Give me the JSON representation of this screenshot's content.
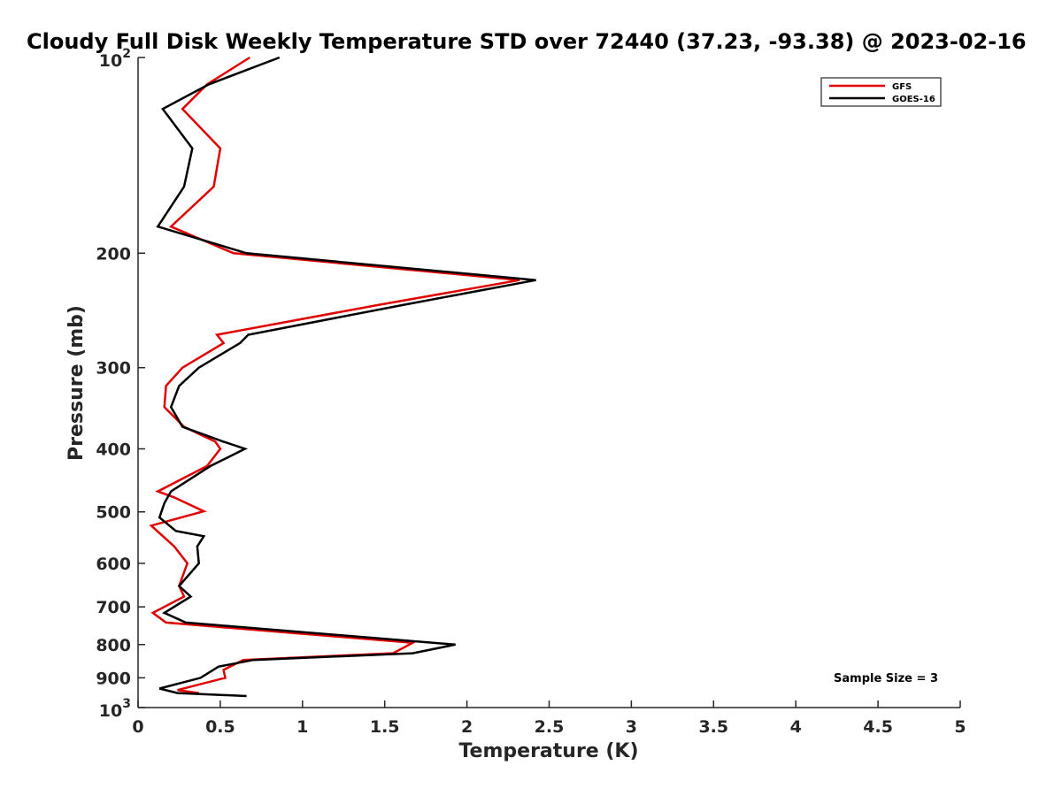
{
  "chart_data": {
    "type": "line",
    "title": "Cloudy Full Disk Weekly Temperature STD over 72440 (37.23, -93.38) @ 2023-02-16",
    "xlabel": "Temperature (K)",
    "ylabel": "Pressure (mb)",
    "xlim": [
      0,
      5
    ],
    "ylim": [
      100,
      1000
    ],
    "y_scale": "log",
    "y_reversed": true,
    "x_ticks": [
      0,
      0.5,
      1,
      1.5,
      2,
      2.5,
      3,
      3.5,
      4,
      4.5,
      5
    ],
    "x_tick_labels": [
      "0",
      "0.5",
      "1",
      "1.5",
      "2",
      "2.5",
      "3",
      "3.5",
      "4",
      "4.5",
      "5"
    ],
    "y_ticks": [
      100,
      200,
      300,
      400,
      500,
      600,
      700,
      800,
      900,
      1000
    ],
    "y_tick_labels": [
      {
        "base": "10",
        "exp": "2"
      },
      {
        "base": "200"
      },
      {
        "base": "300"
      },
      {
        "base": "400"
      },
      {
        "base": "500"
      },
      {
        "base": "600"
      },
      {
        "base": "700"
      },
      {
        "base": "800"
      },
      {
        "base": "900"
      },
      {
        "base": "10",
        "exp": "3"
      }
    ],
    "grid": false,
    "legend_position": "top-right",
    "series": [
      {
        "name": "GFS",
        "color": "#e00000",
        "points": [
          [
            0.68,
            100
          ],
          [
            0.42,
            110
          ],
          [
            0.27,
            120
          ],
          [
            0.5,
            138
          ],
          [
            0.46,
            158
          ],
          [
            0.2,
            182
          ],
          [
            0.58,
            200
          ],
          [
            2.32,
            220
          ],
          [
            1.47,
            240
          ],
          [
            0.48,
            267
          ],
          [
            0.52,
            275
          ],
          [
            0.27,
            300
          ],
          [
            0.17,
            320
          ],
          [
            0.16,
            345
          ],
          [
            0.28,
            370
          ],
          [
            0.47,
            390
          ],
          [
            0.5,
            400
          ],
          [
            0.42,
            425
          ],
          [
            0.12,
            465
          ],
          [
            0.22,
            475
          ],
          [
            0.4,
            499
          ],
          [
            0.08,
            525
          ],
          [
            0.22,
            565
          ],
          [
            0.3,
            600
          ],
          [
            0.25,
            650
          ],
          [
            0.28,
            675
          ],
          [
            0.09,
            715
          ],
          [
            0.17,
            740
          ],
          [
            1.67,
            795
          ],
          [
            1.55,
            825
          ],
          [
            0.64,
            845
          ],
          [
            0.52,
            875
          ],
          [
            0.53,
            900
          ],
          [
            0.24,
            940
          ],
          [
            0.37,
            950
          ]
        ]
      },
      {
        "name": "GOES-16",
        "color": "#000000",
        "points": [
          [
            0.86,
            100
          ],
          [
            0.43,
            110
          ],
          [
            0.15,
            120
          ],
          [
            0.33,
            138
          ],
          [
            0.28,
            158
          ],
          [
            0.12,
            182
          ],
          [
            0.66,
            200
          ],
          [
            2.42,
            220
          ],
          [
            1.62,
            240
          ],
          [
            0.67,
            267
          ],
          [
            0.62,
            275
          ],
          [
            0.37,
            300
          ],
          [
            0.25,
            320
          ],
          [
            0.2,
            345
          ],
          [
            0.27,
            370
          ],
          [
            0.52,
            390
          ],
          [
            0.65,
            400
          ],
          [
            0.44,
            425
          ],
          [
            0.2,
            465
          ],
          [
            0.16,
            485
          ],
          [
            0.13,
            510
          ],
          [
            0.23,
            535
          ],
          [
            0.4,
            545
          ],
          [
            0.36,
            565
          ],
          [
            0.37,
            600
          ],
          [
            0.25,
            650
          ],
          [
            0.32,
            675
          ],
          [
            0.16,
            715
          ],
          [
            0.29,
            740
          ],
          [
            1.93,
            800
          ],
          [
            1.67,
            825
          ],
          [
            0.7,
            845
          ],
          [
            0.49,
            865
          ],
          [
            0.38,
            900
          ],
          [
            0.13,
            935
          ],
          [
            0.24,
            950
          ],
          [
            0.66,
            960
          ]
        ]
      }
    ],
    "annotations": [
      "Sample Size = 3"
    ]
  }
}
